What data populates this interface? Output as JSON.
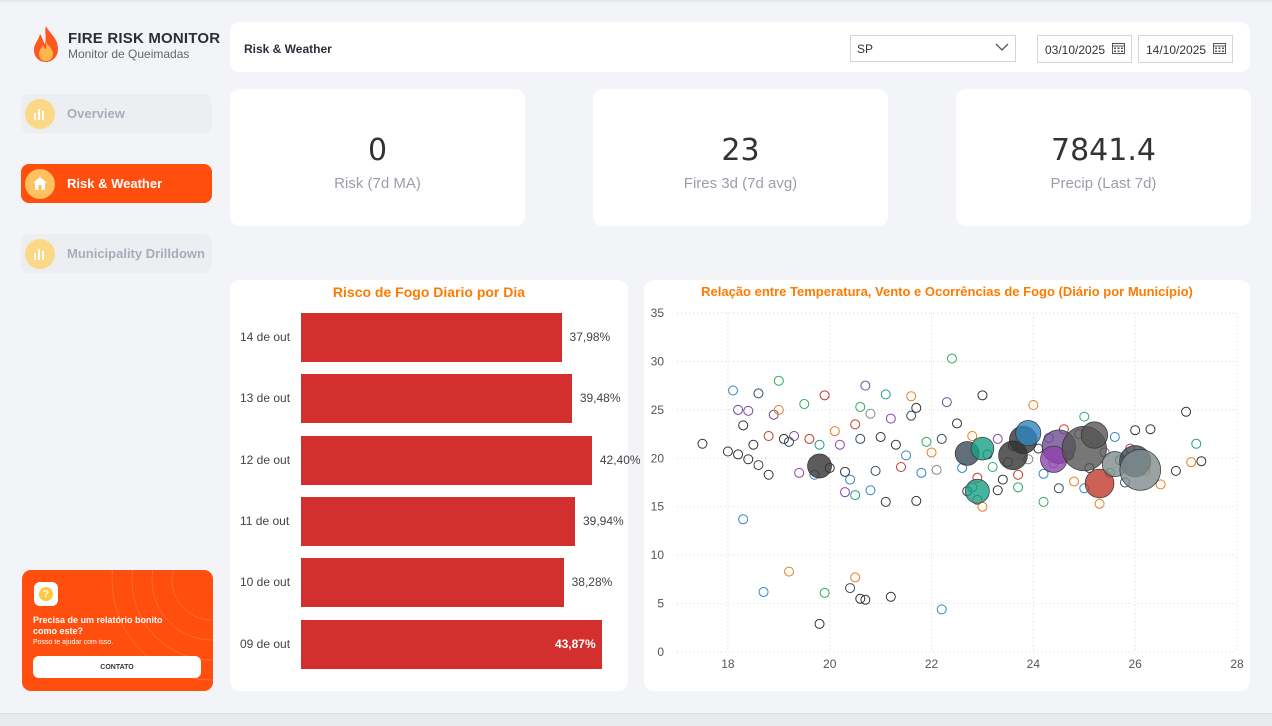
{
  "app": {
    "title": "FIRE RISK MONITOR",
    "subtitle": "Monitor  de Queimadas"
  },
  "sidebar": {
    "items": [
      {
        "label": "Overview",
        "icon": "bar-chart-icon",
        "active": false
      },
      {
        "label": "Risk & Weather",
        "icon": "home-icon",
        "active": true
      },
      {
        "label": "Municipality Drilldown",
        "icon": "bar-chart-icon",
        "active": false
      }
    ]
  },
  "promo": {
    "title": "Precisa de um relatório bonito como este?",
    "subtitle": "Posso te ajudar com isso.",
    "button": "CONTATO",
    "icon": "question-icon"
  },
  "header": {
    "title": "Risk & Weather",
    "state_select": "SP",
    "date_from": "03/10/2025",
    "date_to": "14/10/2025"
  },
  "kpis": [
    {
      "value": "0",
      "label": "Risk (7d MA)"
    },
    {
      "value": "23",
      "label": "Fires 3d (7d avg)"
    },
    {
      "value": "7841.4",
      "label": "Precip (Last 7d)"
    }
  ],
  "colors": {
    "accent": "#ff4e0e",
    "bar": "#d32f2f",
    "title": "#ff7a00"
  },
  "chart_data": [
    {
      "type": "bar",
      "orientation": "horizontal",
      "title": "Risco de Fogo Diario por Dia",
      "categories": [
        "14 de out",
        "13 de out",
        "12 de out",
        "11 de out",
        "10 de out",
        "09 de out"
      ],
      "values": [
        37.98,
        39.48,
        42.4,
        39.94,
        38.28,
        43.87
      ],
      "labels": [
        "37,98%",
        "39,48%",
        "42,40%",
        "39,94%",
        "38,28%",
        "43,87%"
      ],
      "xlim": [
        0,
        50
      ]
    },
    {
      "type": "scatter",
      "title": "Relação entre Temperatura, Vento e Ocorrências de Fogo (Diário por Município)",
      "xlim": [
        17,
        28
      ],
      "ylim": [
        0,
        35
      ],
      "xticks": [
        18,
        20,
        22,
        24,
        26,
        28
      ],
      "yticks": [
        0,
        5,
        10,
        15,
        20,
        25,
        30,
        35
      ],
      "grid": true,
      "palette": [
        "#333333",
        "#3a4a5a",
        "#6a4c93",
        "#2e86c1",
        "#27ae60",
        "#8e44ad",
        "#c0392b",
        "#16a085",
        "#7f8c8d",
        "#e67e22",
        "#9b59b6",
        "#555555"
      ],
      "points": [
        [
          17.5,
          21.5,
          0,
          0
        ],
        [
          18.0,
          20.7,
          0,
          0
        ],
        [
          18.1,
          27.0,
          0,
          3
        ],
        [
          18.2,
          25.0,
          0,
          2
        ],
        [
          18.3,
          23.4,
          0,
          0
        ],
        [
          18.4,
          24.9,
          0,
          5
        ],
        [
          18.5,
          21.4,
          0,
          0
        ],
        [
          18.6,
          26.7,
          0,
          1
        ],
        [
          18.8,
          22.3,
          0,
          6
        ],
        [
          18.2,
          20.4,
          0,
          0
        ],
        [
          18.4,
          19.9,
          0,
          0
        ],
        [
          18.6,
          19.3,
          0,
          1
        ],
        [
          18.8,
          18.3,
          0,
          0
        ],
        [
          18.9,
          24.5,
          0,
          2
        ],
        [
          19.0,
          25.0,
          0,
          9
        ],
        [
          19.1,
          22.0,
          0,
          0
        ],
        [
          19.0,
          28.0,
          0,
          4
        ],
        [
          19.2,
          21.7,
          0,
          1
        ],
        [
          19.3,
          22.3,
          0,
          2
        ],
        [
          19.4,
          18.5,
          0,
          5
        ],
        [
          19.5,
          25.6,
          0,
          4
        ],
        [
          19.6,
          22.0,
          0,
          6
        ],
        [
          19.7,
          18.3,
          0,
          3
        ],
        [
          19.8,
          21.4,
          0,
          7
        ],
        [
          19.9,
          26.5,
          0,
          6
        ],
        [
          20.0,
          19.0,
          0,
          0
        ],
        [
          20.1,
          22.8,
          0,
          9
        ],
        [
          20.2,
          21.4,
          0,
          5
        ],
        [
          20.3,
          18.6,
          0,
          0
        ],
        [
          20.4,
          17.8,
          0,
          3
        ],
        [
          20.5,
          23.5,
          0,
          6
        ],
        [
          20.6,
          22.0,
          0,
          1
        ],
        [
          20.6,
          25.3,
          0,
          4
        ],
        [
          20.7,
          27.5,
          0,
          2
        ],
        [
          20.8,
          24.6,
          0,
          8
        ],
        [
          20.9,
          18.7,
          0,
          1
        ],
        [
          21.0,
          22.2,
          0,
          0
        ],
        [
          21.1,
          26.6,
          0,
          7
        ],
        [
          21.2,
          24.1,
          0,
          5
        ],
        [
          21.3,
          21.4,
          0,
          0
        ],
        [
          21.4,
          19.1,
          0,
          6
        ],
        [
          21.5,
          20.3,
          0,
          3
        ],
        [
          21.6,
          26.4,
          0,
          9
        ],
        [
          21.6,
          24.4,
          0,
          1
        ],
        [
          21.7,
          25.2,
          0,
          0
        ],
        [
          21.8,
          18.5,
          0,
          3
        ],
        [
          21.9,
          21.7,
          0,
          4
        ],
        [
          22.0,
          20.6,
          0,
          9
        ],
        [
          22.1,
          18.8,
          0,
          8
        ],
        [
          22.2,
          22.0,
          0,
          1
        ],
        [
          22.3,
          25.8,
          0,
          2
        ],
        [
          22.4,
          30.3,
          0,
          4
        ],
        [
          22.5,
          23.6,
          0,
          0
        ],
        [
          22.6,
          19.0,
          0,
          3
        ],
        [
          22.7,
          16.6,
          0,
          0
        ],
        [
          22.8,
          22.3,
          0,
          9
        ],
        [
          22.9,
          18.0,
          0,
          6
        ],
        [
          23.0,
          26.5,
          0,
          0
        ],
        [
          23.1,
          20.4,
          0,
          1
        ],
        [
          23.2,
          19.1,
          0,
          4
        ],
        [
          23.3,
          22.0,
          0,
          5
        ],
        [
          23.4,
          17.8,
          0,
          0
        ],
        [
          23.5,
          19.6,
          0,
          4
        ],
        [
          23.6,
          21.3,
          0,
          0
        ],
        [
          23.7,
          18.3,
          0,
          6
        ],
        [
          23.8,
          22.7,
          0,
          2
        ],
        [
          23.9,
          19.9,
          0,
          8
        ],
        [
          24.0,
          25.5,
          0,
          9
        ],
        [
          24.1,
          21.0,
          0,
          0
        ],
        [
          24.2,
          18.4,
          0,
          3
        ],
        [
          24.3,
          22.1,
          0,
          5
        ],
        [
          24.4,
          19.5,
          0,
          7
        ],
        [
          24.5,
          16.9,
          0,
          1
        ],
        [
          24.6,
          23.0,
          0,
          6
        ],
        [
          24.7,
          20.3,
          0,
          0
        ],
        [
          24.8,
          17.6,
          0,
          9
        ],
        [
          24.9,
          22.5,
          0,
          2
        ],
        [
          25.0,
          24.3,
          0,
          4
        ],
        [
          25.1,
          19.0,
          0,
          0
        ],
        [
          25.2,
          21.8,
          0,
          8
        ],
        [
          25.3,
          15.3,
          0,
          9
        ],
        [
          25.4,
          20.6,
          0,
          5
        ],
        [
          25.5,
          18.5,
          0,
          7
        ],
        [
          25.6,
          22.2,
          0,
          3
        ],
        [
          25.7,
          19.8,
          0,
          0
        ],
        [
          25.8,
          17.5,
          0,
          1
        ],
        [
          25.9,
          21.0,
          0,
          6
        ],
        [
          26.0,
          22.9,
          0,
          0
        ],
        [
          26.1,
          20.3,
          0,
          2
        ],
        [
          26.2,
          18.7,
          0,
          9
        ],
        [
          26.3,
          23.0,
          0,
          0
        ],
        [
          26.5,
          17.3,
          0,
          9
        ],
        [
          26.8,
          18.7,
          0,
          0
        ],
        [
          27.0,
          24.8,
          0,
          0
        ],
        [
          27.2,
          21.5,
          0,
          7
        ],
        [
          27.3,
          19.7,
          0,
          0
        ],
        [
          27.1,
          19.6,
          0,
          9
        ],
        [
          18.3,
          13.7,
          0,
          3
        ],
        [
          19.2,
          8.3,
          0,
          9
        ],
        [
          18.7,
          6.2,
          0,
          3
        ],
        [
          19.9,
          6.1,
          0,
          4
        ],
        [
          19.8,
          2.9,
          0,
          0
        ],
        [
          20.4,
          6.6,
          0,
          1
        ],
        [
          20.6,
          5.5,
          0,
          0
        ],
        [
          20.7,
          5.4,
          0,
          0
        ],
        [
          20.5,
          7.7,
          0,
          9
        ],
        [
          21.2,
          5.7,
          0,
          0
        ],
        [
          22.2,
          4.4,
          0,
          3
        ],
        [
          20.3,
          16.5,
          0,
          5
        ],
        [
          20.5,
          16.2,
          0,
          7
        ],
        [
          20.8,
          16.7,
          0,
          3
        ],
        [
          21.1,
          15.5,
          0,
          0
        ],
        [
          21.7,
          15.6,
          0,
          0
        ],
        [
          22.9,
          15.7,
          0,
          6
        ],
        [
          23.0,
          15.0,
          0,
          9
        ],
        [
          23.3,
          16.7,
          0,
          0
        ],
        [
          22.8,
          17.0,
          0,
          2
        ],
        [
          23.7,
          17.0,
          0,
          4
        ],
        [
          24.2,
          15.5,
          0,
          4
        ],
        [
          25.0,
          16.9,
          0,
          3
        ],
        [
          19.8,
          19.2,
          1,
          0
        ],
        [
          22.7,
          20.5,
          1,
          1
        ],
        [
          23.0,
          21.0,
          0.9,
          7
        ],
        [
          22.9,
          16.6,
          1,
          7
        ],
        [
          23.6,
          20.3,
          1.4,
          0
        ],
        [
          23.8,
          21.9,
          1.3,
          0
        ],
        [
          23.9,
          22.6,
          1.1,
          3
        ],
        [
          24.5,
          21.2,
          1.8,
          2
        ],
        [
          24.4,
          19.9,
          1.2,
          5
        ],
        [
          25.0,
          21.0,
          2.7,
          11
        ],
        [
          25.3,
          17.4,
          1.4,
          6
        ],
        [
          25.6,
          19.4,
          1.1,
          8
        ],
        [
          26.0,
          19.7,
          1.6,
          1
        ],
        [
          26.1,
          18.8,
          2.4,
          8
        ],
        [
          25.2,
          22.4,
          1.2,
          11
        ]
      ]
    }
  ]
}
